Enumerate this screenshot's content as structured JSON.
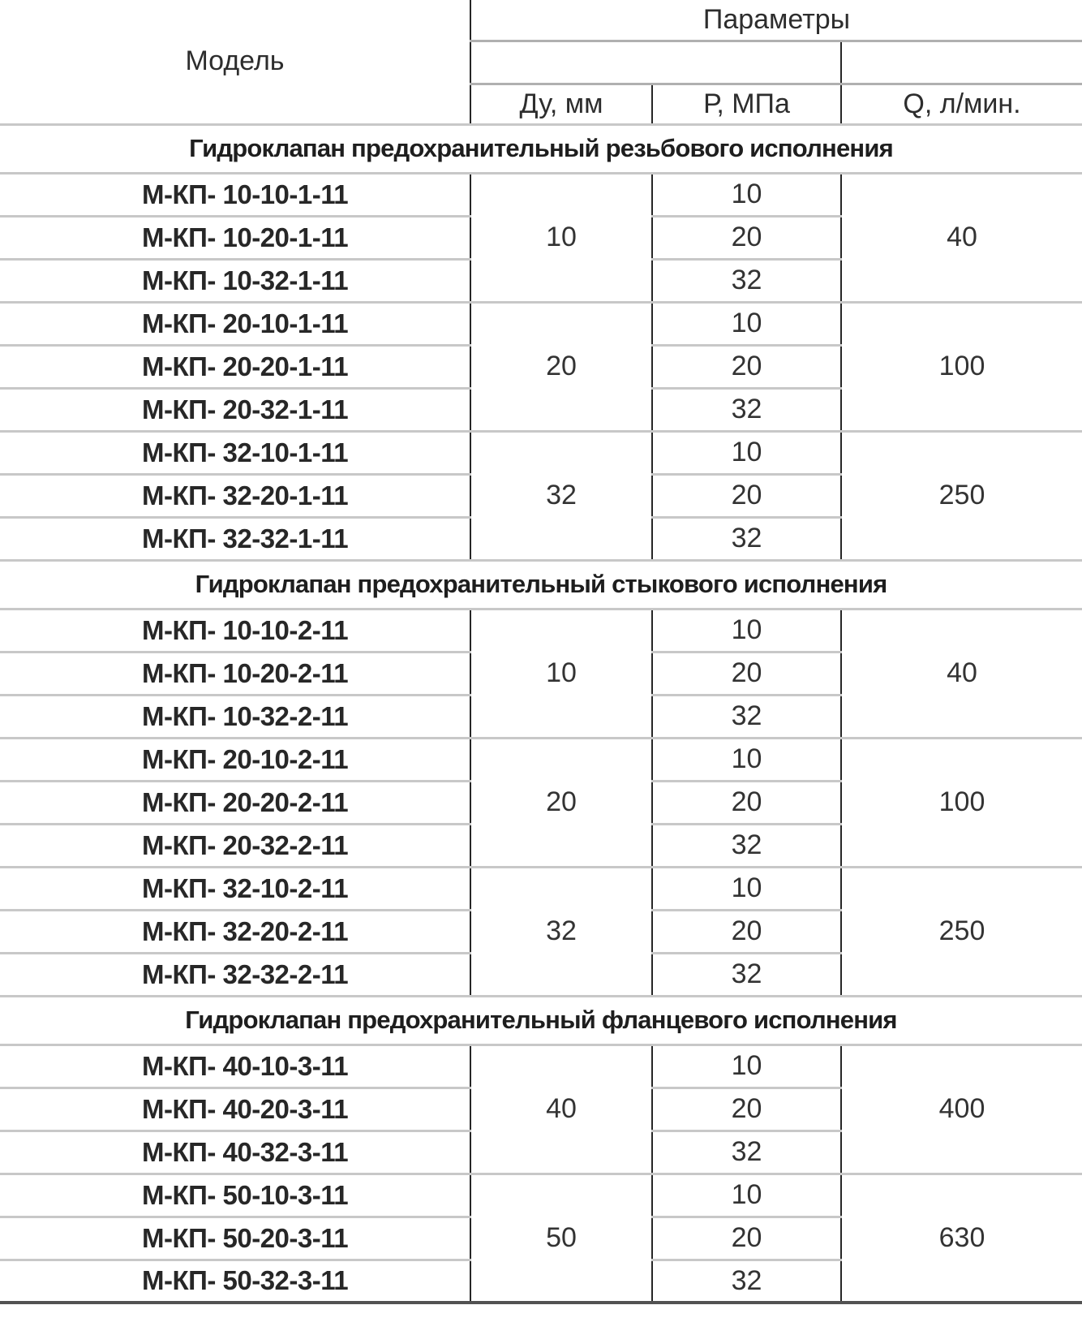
{
  "header": {
    "model": "Модель",
    "params": "Параметры",
    "sub": [
      "Ду, мм",
      "Р, МПа",
      "Q, л/мин."
    ]
  },
  "sections": [
    {
      "title": "Гидроклапан предохранительный резьбового исполнения",
      "groups": [
        {
          "du": "10",
          "q": "40",
          "rows": [
            {
              "model": "М-КП- 10-10-1-11",
              "p": "10"
            },
            {
              "model": "М-КП- 10-20-1-11",
              "p": "20"
            },
            {
              "model": "М-КП- 10-32-1-11",
              "p": "32"
            }
          ]
        },
        {
          "du": "20",
          "q": "100",
          "rows": [
            {
              "model": "М-КП- 20-10-1-11",
              "p": "10"
            },
            {
              "model": "М-КП- 20-20-1-11",
              "p": "20"
            },
            {
              "model": "М-КП- 20-32-1-11",
              "p": "32"
            }
          ]
        },
        {
          "du": "32",
          "q": "250",
          "rows": [
            {
              "model": "М-КП- 32-10-1-11",
              "p": "10"
            },
            {
              "model": "М-КП- 32-20-1-11",
              "p": "20"
            },
            {
              "model": "М-КП- 32-32-1-11",
              "p": "32"
            }
          ]
        }
      ]
    },
    {
      "title": "Гидроклапан предохранительный стыкового исполнения",
      "groups": [
        {
          "du": "10",
          "q": "40",
          "rows": [
            {
              "model": "М-КП- 10-10-2-11",
              "p": "10"
            },
            {
              "model": "М-КП- 10-20-2-11",
              "p": "20"
            },
            {
              "model": "М-КП- 10-32-2-11",
              "p": "32"
            }
          ]
        },
        {
          "du": "20",
          "q": "100",
          "rows": [
            {
              "model": "М-КП- 20-10-2-11",
              "p": "10"
            },
            {
              "model": "М-КП- 20-20-2-11",
              "p": "20"
            },
            {
              "model": "М-КП- 20-32-2-11",
              "p": "32"
            }
          ]
        },
        {
          "du": "32",
          "q": "250",
          "rows": [
            {
              "model": "М-КП- 32-10-2-11",
              "p": "10"
            },
            {
              "model": "М-КП- 32-20-2-11",
              "p": "20"
            },
            {
              "model": "М-КП- 32-32-2-11",
              "p": "32"
            }
          ]
        }
      ]
    },
    {
      "title": "Гидроклапан предохранительный фланцевого исполнения",
      "groups": [
        {
          "du": "40",
          "q": "400",
          "rows": [
            {
              "model": "М-КП- 40-10-3-11",
              "p": "10"
            },
            {
              "model": "М-КП- 40-20-3-11",
              "p": "20"
            },
            {
              "model": "М-КП- 40-32-3-11",
              "p": "32"
            }
          ]
        },
        {
          "du": "50",
          "q": "630",
          "rows": [
            {
              "model": "М-КП- 50-10-3-11",
              "p": "10"
            },
            {
              "model": "М-КП- 50-20-3-11",
              "p": "20"
            },
            {
              "model": "М-КП- 50-32-3-11",
              "p": "32"
            }
          ]
        }
      ]
    }
  ],
  "colors": {
    "column_rule": "#262626",
    "row_separator": "#c8c8c8",
    "header_separator": "#b0b0b0",
    "bottom_border": "#525252",
    "text": "#2d2d2d",
    "background": "#ffffff"
  }
}
